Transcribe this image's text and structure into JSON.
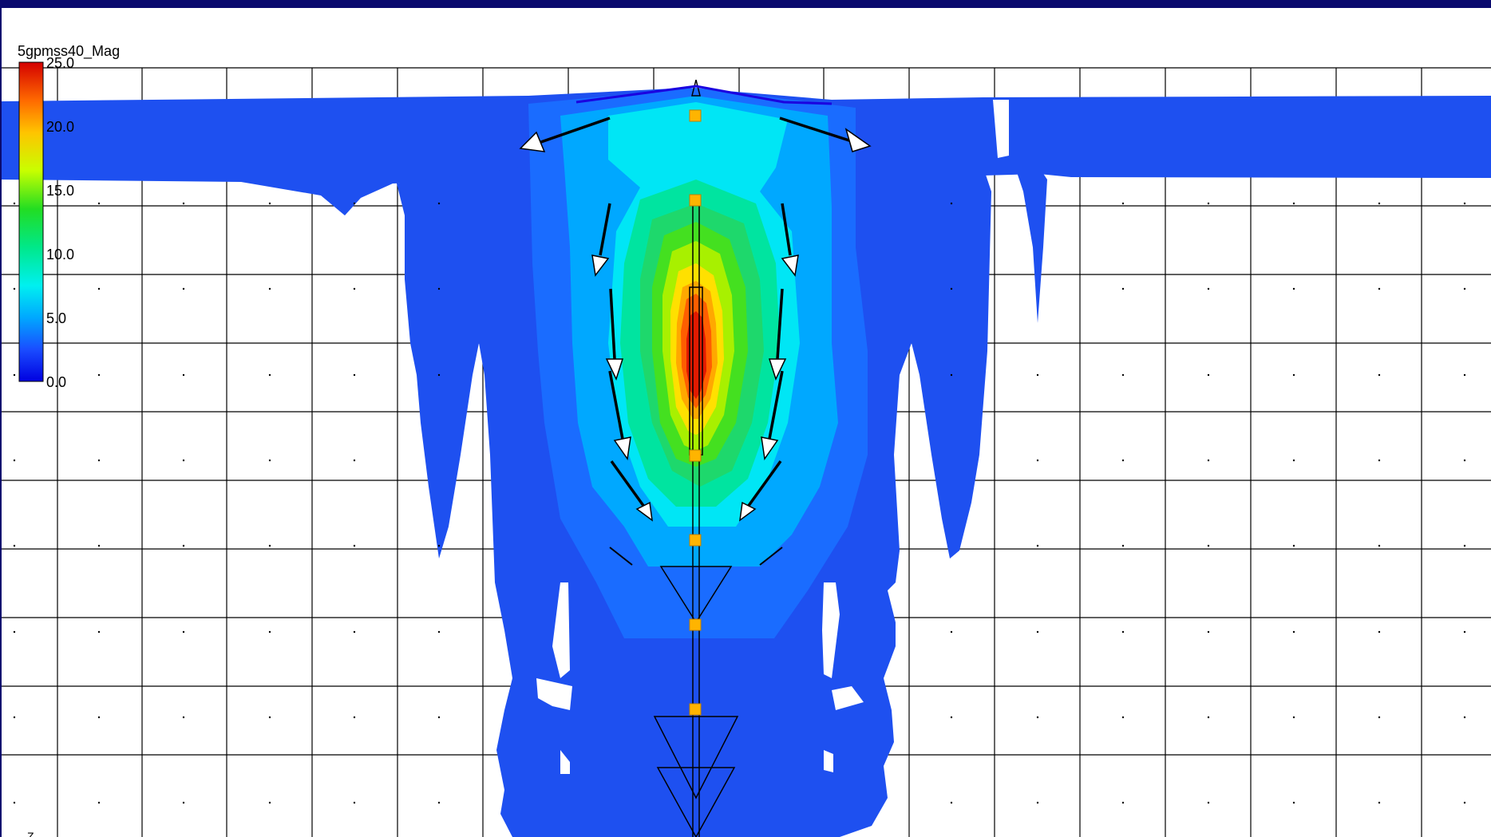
{
  "legend": {
    "title": "5gpmss40_Mag",
    "ticks": [
      "25.0",
      "20.0",
      "15.0",
      "10.0",
      "5.0",
      "0.0"
    ],
    "colors": [
      "#d40000",
      "#ff6a00",
      "#ffc400",
      "#c8ff00",
      "#22dd22",
      "#00e88a",
      "#00f0f0",
      "#00a8ff",
      "#1a4dff",
      "#0000e0"
    ]
  },
  "axis_label": "Z",
  "colors": {
    "frame": "#0a0a6e",
    "shallow": "#1e50f0",
    "grid": "#000000",
    "node": "#ffb400"
  },
  "icons": {
    "flow-arrow": "open-triangle-arrow",
    "node": "orange-square",
    "axis-triad": "z-axis-arrow"
  }
}
